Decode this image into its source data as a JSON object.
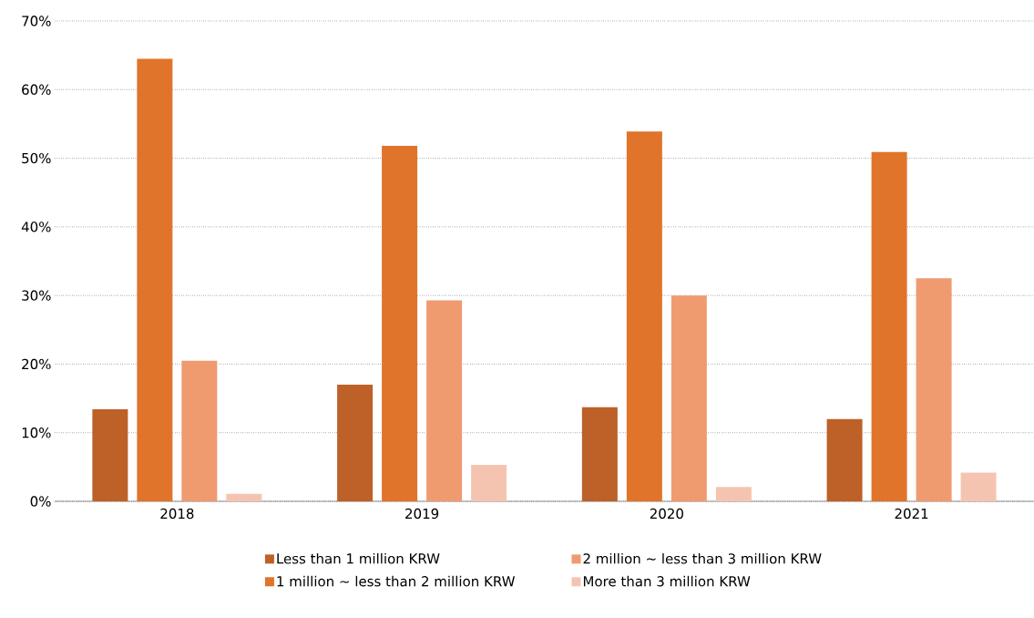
{
  "chart_data": {
    "type": "bar",
    "categories": [
      "2018",
      "2019",
      "2020",
      "2021"
    ],
    "series": [
      {
        "name": "Less than 1 million KRW",
        "color": "#bd6128",
        "values": [
          13.4,
          17.0,
          13.7,
          12.0
        ]
      },
      {
        "name": "1 million ~ less than 2 million KRW",
        "color": "#e0742b",
        "values": [
          64.5,
          51.8,
          53.9,
          50.9
        ]
      },
      {
        "name": "2 million ~ less than 3 million KRW",
        "color": "#f09a70",
        "values": [
          20.5,
          29.3,
          30.0,
          32.5
        ]
      },
      {
        "name": "More than 3 million KRW",
        "color": "#f5c4b1",
        "values": [
          1.1,
          5.3,
          2.1,
          4.2
        ]
      }
    ],
    "ylim": [
      0,
      70
    ],
    "yticks": [
      {
        "value": 0,
        "label": "0%"
      },
      {
        "value": 10,
        "label": "10%"
      },
      {
        "value": 20,
        "label": "20%"
      },
      {
        "value": 30,
        "label": "30%"
      },
      {
        "value": 40,
        "label": "40%"
      },
      {
        "value": 50,
        "label": "50%"
      },
      {
        "value": 60,
        "label": "60%"
      },
      {
        "value": 70,
        "label": "70%"
      }
    ],
    "grid": "y",
    "legend": "bottom"
  }
}
